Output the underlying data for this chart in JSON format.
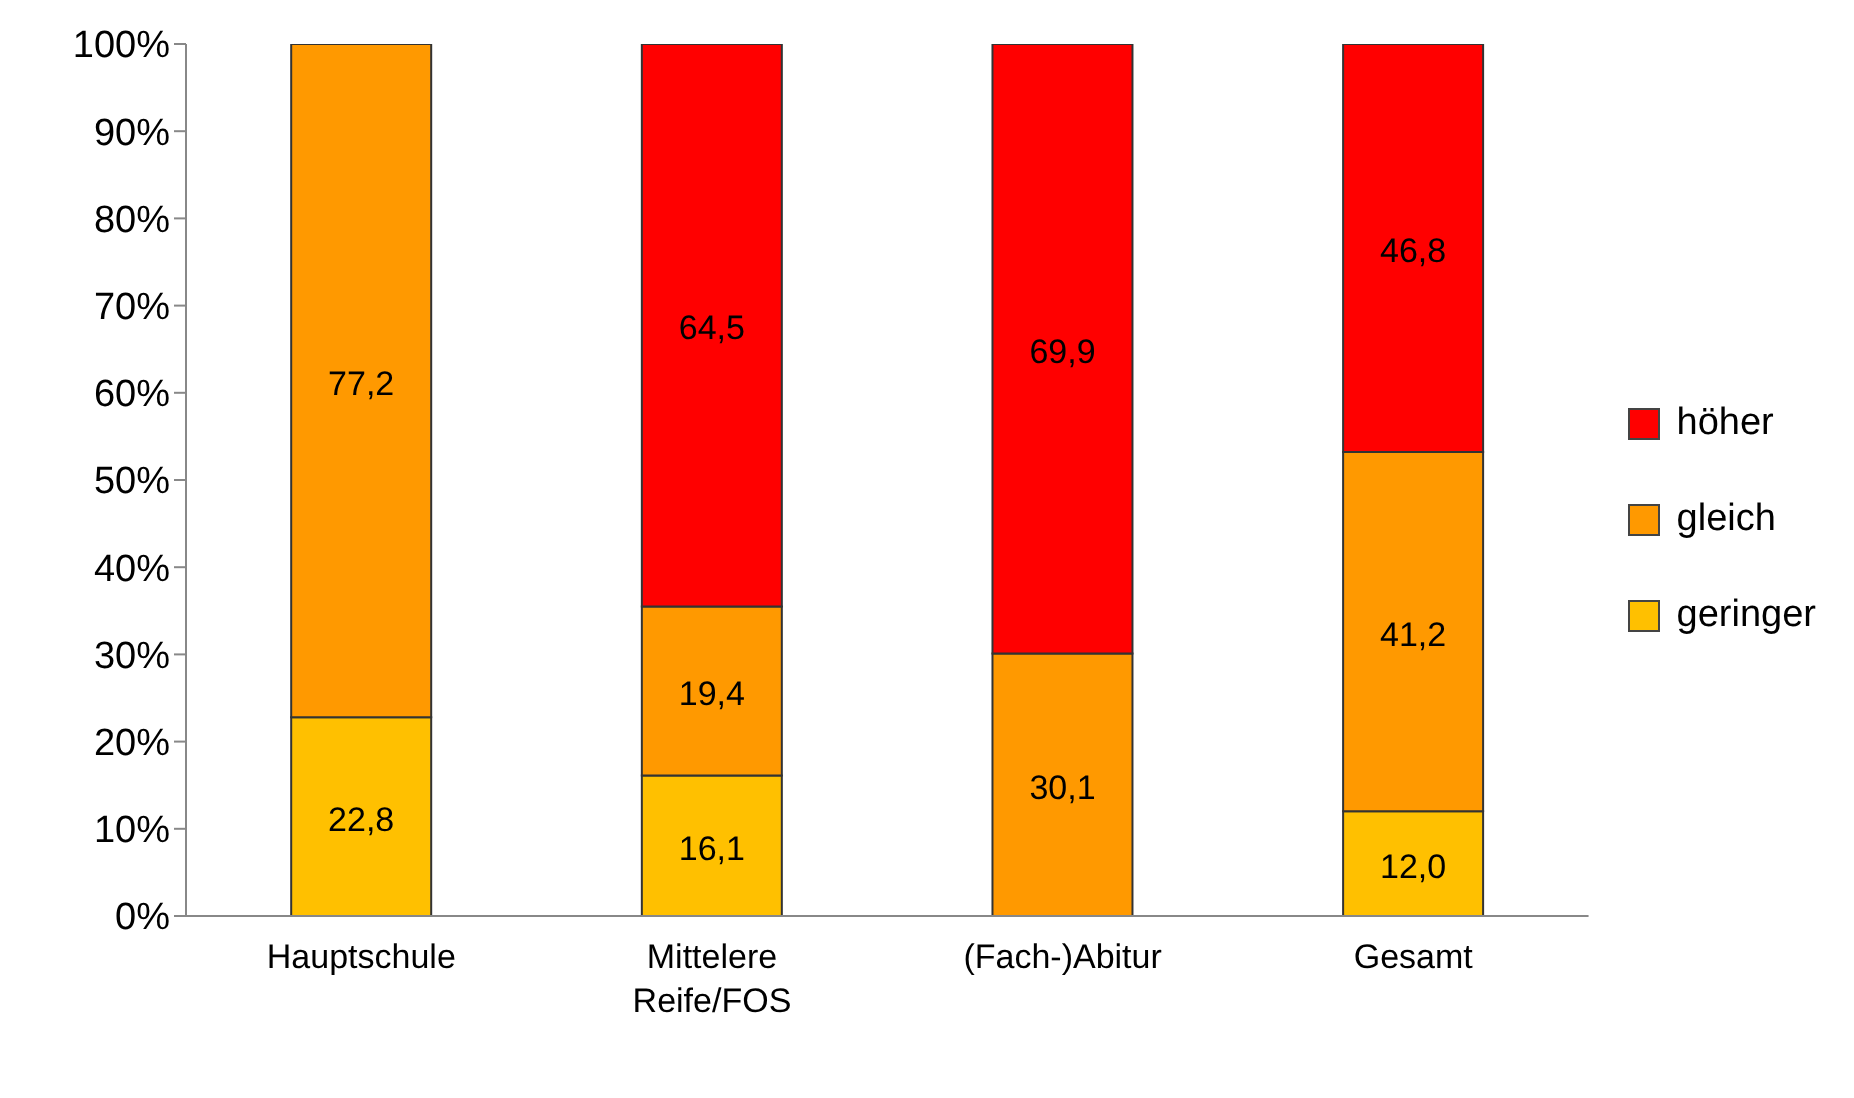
{
  "chart_data": {
    "type": "bar",
    "stacked": true,
    "categories": [
      "Hauptschule",
      "Mittelere Reife/FOS",
      "(Fach-)Abitur",
      "Gesamt"
    ],
    "series": [
      {
        "name": "geringer",
        "color": "#ffc000",
        "values": [
          22.8,
          16.1,
          null,
          12.0
        ],
        "value_labels": [
          "22,8",
          "16,1",
          null,
          "12,0"
        ]
      },
      {
        "name": "gleich",
        "color": "#ff9900",
        "values": [
          77.2,
          19.4,
          30.1,
          41.2
        ],
        "value_labels": [
          "77,2",
          "19,4",
          "30,1",
          "41,2"
        ]
      },
      {
        "name": "höher",
        "color": "#ff0000",
        "values": [
          null,
          64.5,
          69.9,
          46.8
        ],
        "value_labels": [
          null,
          "64,5",
          "69,9",
          "46,8"
        ]
      }
    ],
    "ylim": [
      0,
      100
    ],
    "yticks": [
      {
        "value": 0,
        "label": "0%"
      },
      {
        "value": 10,
        "label": "10%"
      },
      {
        "value": 20,
        "label": "20%"
      },
      {
        "value": 30,
        "label": "30%"
      },
      {
        "value": 40,
        "label": "40%"
      },
      {
        "value": 50,
        "label": "50%"
      },
      {
        "value": 60,
        "label": "60%"
      },
      {
        "value": 70,
        "label": "70%"
      },
      {
        "value": 80,
        "label": "80%"
      },
      {
        "value": 90,
        "label": "90%"
      },
      {
        "value": 100,
        "label": "100%"
      }
    ],
    "grid": false,
    "legend": "right"
  }
}
